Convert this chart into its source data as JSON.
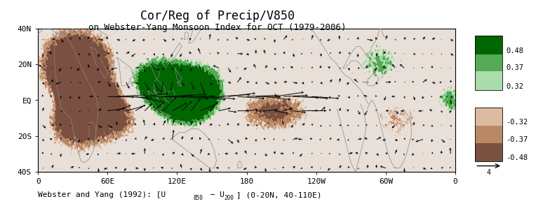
{
  "title1": "Cor/Reg of Precip/V850",
  "title2": "on Webster-Yang Monsoon Index for OCT (1979-2006)",
  "xlabels": [
    "0",
    "60E",
    "120E",
    "180",
    "120W",
    "60W",
    "0"
  ],
  "ylabels": [
    "40N",
    "20N",
    "EQ",
    "20S",
    "40S"
  ],
  "cb_top_colors": [
    "#006600",
    "#55aa55",
    "#aaddaa"
  ],
  "cb_bot_colors": [
    "#ddbba0",
    "#bb8866",
    "#7a5040"
  ],
  "cb_top_labels": [
    "0.48",
    "0.37",
    "0.32"
  ],
  "cb_bot_labels": [
    "-0.32",
    "-0.37",
    "-0.48"
  ],
  "bg_color": "#e8e0d8",
  "coast_color": "#888888",
  "quiver_scale_label": "4"
}
